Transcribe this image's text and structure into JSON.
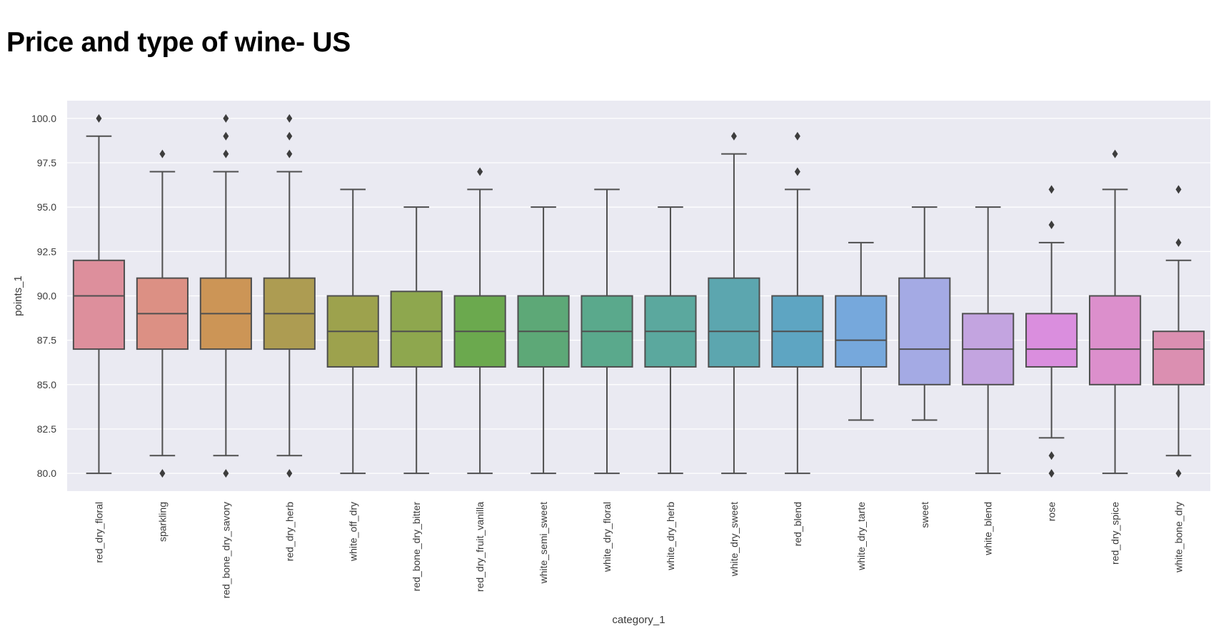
{
  "page": {
    "title": "Price and type of wine- US"
  },
  "chart_data": {
    "type": "box",
    "title": "Price and type of wine- US",
    "xlabel": "category_1",
    "ylabel": "points_1",
    "ylim": [
      79.0,
      101.0
    ],
    "yticks": [
      "80.0",
      "82.5",
      "85.0",
      "87.5",
      "90.0",
      "92.5",
      "95.0",
      "97.5",
      "100.0"
    ],
    "grid": true,
    "background": "#eaeaf2",
    "categories": [
      {
        "name": "red_dry_floral",
        "whislo": 80,
        "q1": 87,
        "med": 90,
        "q3": 92,
        "whishi": 99,
        "fliers": [
          100
        ],
        "color": "#dd8f9c"
      },
      {
        "name": "sparkling",
        "whislo": 81,
        "q1": 87,
        "med": 89,
        "q3": 91,
        "whishi": 97,
        "fliers": [
          80,
          98
        ],
        "color": "#dc9084"
      },
      {
        "name": "red_bone_dry_savory",
        "whislo": 81,
        "q1": 87,
        "med": 89,
        "q3": 91,
        "whishi": 97,
        "fliers": [
          80,
          98,
          99,
          100
        ],
        "color": "#cc9556"
      },
      {
        "name": "red_dry_herb",
        "whislo": 81,
        "q1": 87,
        "med": 89,
        "q3": 91,
        "whishi": 97,
        "fliers": [
          80,
          98,
          99,
          100
        ],
        "color": "#ad9c52"
      },
      {
        "name": "white_off_dry",
        "whislo": 80,
        "q1": 86,
        "med": 88,
        "q3": 90,
        "whishi": 96,
        "fliers": [],
        "color": "#9da24d"
      },
      {
        "name": "red_bone_dry_bitter",
        "whislo": 80,
        "q1": 86,
        "med": 88,
        "q3": 90.25,
        "whishi": 95,
        "fliers": [],
        "color": "#8ea74e"
      },
      {
        "name": "red_dry_fruit_vanilla",
        "whislo": 80,
        "q1": 86,
        "med": 88,
        "q3": 90,
        "whishi": 96,
        "fliers": [
          97
        ],
        "color": "#6ba94e"
      },
      {
        "name": "white_semi_sweet",
        "whislo": 80,
        "q1": 86,
        "med": 88,
        "q3": 90,
        "whishi": 95,
        "fliers": [],
        "color": "#5da877"
      },
      {
        "name": "white_dry_floral",
        "whislo": 80,
        "q1": 86,
        "med": 88,
        "q3": 90,
        "whishi": 96,
        "fliers": [],
        "color": "#5aa98c"
      },
      {
        "name": "white_dry_herb",
        "whislo": 80,
        "q1": 86,
        "med": 88,
        "q3": 90,
        "whishi": 95,
        "fliers": [],
        "color": "#5ba89e"
      },
      {
        "name": "white_dry_sweet",
        "whislo": 80,
        "q1": 86,
        "med": 88,
        "q3": 91,
        "whishi": 98,
        "fliers": [
          99
        ],
        "color": "#5ca6af"
      },
      {
        "name": "red_blend",
        "whislo": 80,
        "q1": 86,
        "med": 88,
        "q3": 90,
        "whishi": 96,
        "fliers": [
          97,
          99
        ],
        "color": "#5ea5c2"
      },
      {
        "name": "white_dry_tarte",
        "whislo": 83,
        "q1": 86,
        "med": 87.5,
        "q3": 90,
        "whishi": 93,
        "fliers": [],
        "color": "#76a8dc"
      },
      {
        "name": "sweet",
        "whislo": 83,
        "q1": 85,
        "med": 87,
        "q3": 91,
        "whishi": 95,
        "fliers": [],
        "color": "#a4aae4"
      },
      {
        "name": "white_blend",
        "whislo": 80,
        "q1": 85,
        "med": 87,
        "q3": 89,
        "whishi": 95,
        "fliers": [],
        "color": "#c3a4e0"
      },
      {
        "name": "rose",
        "whislo": 82,
        "q1": 86,
        "med": 87,
        "q3": 89,
        "whishi": 93,
        "fliers": [
          80,
          81,
          94,
          96
        ],
        "color": "#da8ede"
      },
      {
        "name": "red_dry_spice",
        "whislo": 80,
        "q1": 85,
        "med": 87,
        "q3": 90,
        "whishi": 96,
        "fliers": [
          98
        ],
        "color": "#dc8fcc"
      },
      {
        "name": "white_bone_dry",
        "whislo": 81,
        "q1": 85,
        "med": 87,
        "q3": 88,
        "whishi": 92,
        "fliers": [
          80,
          93,
          96
        ],
        "color": "#db8fb1"
      }
    ]
  }
}
